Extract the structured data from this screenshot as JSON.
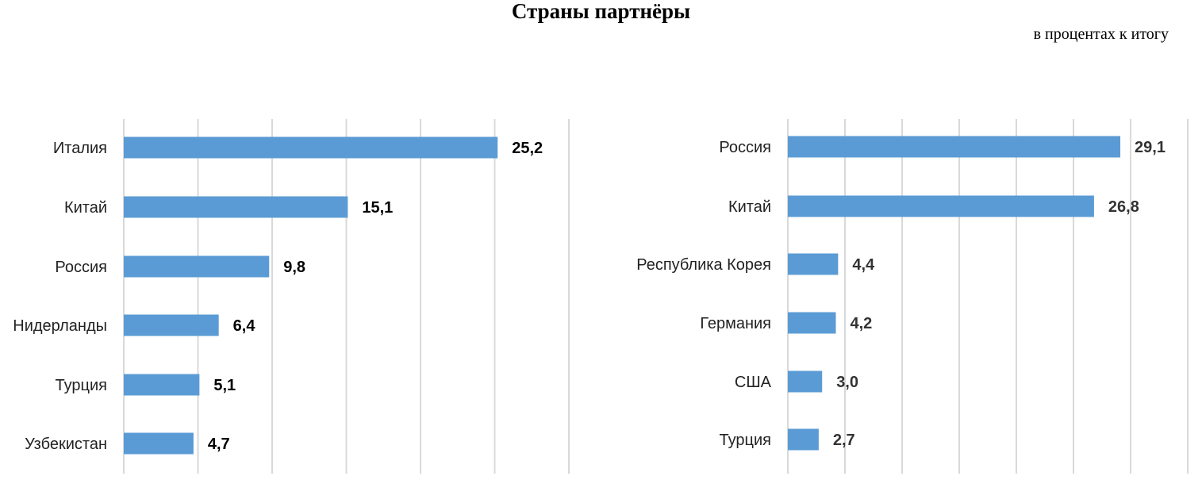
{
  "title": "Страны партнёры",
  "subtitle": "в процентах к итогу",
  "colors": {
    "bar": "#5b9bd5",
    "grid": "#d9d9d9",
    "label": "#222222",
    "value_left": "#000000",
    "value_right": "#333333"
  },
  "chart_data": [
    {
      "type": "bar",
      "orientation": "horizontal",
      "categories": [
        "Италия",
        "Китай",
        "Россия",
        "Нидерланды",
        "Турция",
        "Узбекистан"
      ],
      "values": [
        25.2,
        15.1,
        9.8,
        6.4,
        5.1,
        4.7
      ],
      "value_labels": [
        "25,2",
        "15,1",
        "9,8",
        "6,4",
        "5,1",
        "4,7"
      ],
      "xlim": [
        0,
        30
      ],
      "grid_step": 5,
      "grid": true
    },
    {
      "type": "bar",
      "orientation": "horizontal",
      "categories": [
        "Россия",
        "Китай",
        "Республика Корея",
        "Германия",
        "США",
        "Турция"
      ],
      "values": [
        29.1,
        26.8,
        4.4,
        4.2,
        3.0,
        2.7
      ],
      "value_labels": [
        "29,1",
        "26,8",
        "4,4",
        "4,2",
        "3,0",
        "2,7"
      ],
      "xlim": [
        0,
        35
      ],
      "grid_step": 5,
      "grid": true
    }
  ]
}
